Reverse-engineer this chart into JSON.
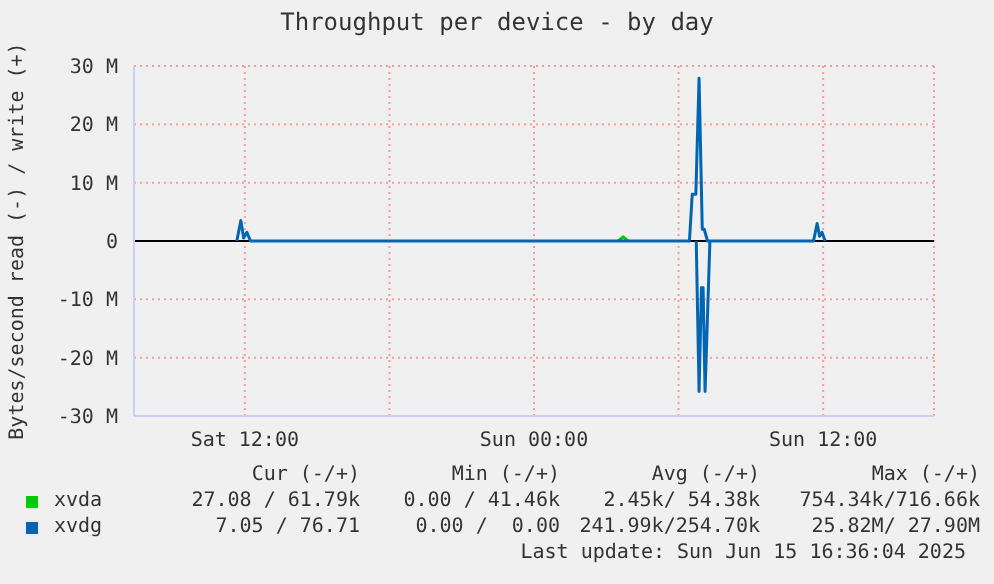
{
  "chart_data": {
    "type": "line",
    "title": "Throughput per device - by day",
    "ylabel": "Bytes/second read (-) / write (+)",
    "xlim": [
      "2025-06-14T07:24",
      "2025-06-15T16:36"
    ],
    "xticks": [
      {
        "value": "2025-06-14T12:00",
        "label": "Sat 12:00"
      },
      {
        "value": "2025-06-14T18:00",
        "label": null
      },
      {
        "value": "2025-06-15T00:00",
        "label": "Sun 00:00"
      },
      {
        "value": "2025-06-15T06:00",
        "label": null
      },
      {
        "value": "2025-06-15T12:00",
        "label": "Sun 12:00"
      }
    ],
    "ylim": [
      -30000000,
      30000000
    ],
    "yticks": [
      {
        "value": -30000000,
        "label": "-30 M"
      },
      {
        "value": -20000000,
        "label": "-20 M"
      },
      {
        "value": -10000000,
        "label": "-10 M"
      },
      0,
      {
        "value": 10000000,
        "label": "10 M"
      },
      {
        "value": 20000000,
        "label": "20 M"
      },
      {
        "value": 30000000,
        "label": "30 M"
      }
    ],
    "grid": true,
    "legend": "bottom",
    "marker": "none",
    "line_style": "solid",
    "ref_lines": [
      {
        "axis": "y",
        "value": 0,
        "color": "#000000"
      }
    ],
    "series": [
      {
        "name": "xvda",
        "color": "#00cc00",
        "x": [
          "2025-06-15T03:30",
          "2025-06-15T03:42",
          "2025-06-15T03:54"
        ],
        "values": [
          0,
          700000,
          0
        ]
      },
      {
        "name": "xvdg",
        "color": "#0066b3",
        "x": [
          "2025-06-14T11:40",
          "2025-06-14T11:50",
          "2025-06-14T11:57",
          "2025-06-14T12:05",
          "2025-06-14T12:14",
          "2025-06-15T06:27",
          "2025-06-15T06:34",
          "2025-06-15T06:43",
          "2025-06-15T06:51",
          "2025-06-15T06:59",
          "2025-06-15T07:04",
          "2025-06-15T07:12",
          "2025-06-15T11:36",
          "2025-06-15T11:45",
          "2025-06-15T11:51",
          "2025-06-15T11:57",
          "2025-06-15T12:05"
        ],
        "values": [
          0,
          3500000,
          500000,
          1500000,
          0,
          0,
          8000000,
          8000000,
          27900000,
          2000000,
          2000000,
          0,
          0,
          3000000,
          800000,
          1500000,
          0
        ]
      },
      {
        "color": "#0066b3",
        "x": [
          "2025-06-15T06:44",
          "2025-06-15T06:51",
          "2025-06-15T06:57",
          "2025-06-15T07:01",
          "2025-06-15T07:06",
          "2025-06-15T07:18"
        ],
        "values": [
          0,
          -25800000,
          -8000000,
          -8000000,
          -25800000,
          0
        ]
      }
    ],
    "annotations": [
      "Cur (-/+)",
      "Min (-/+)",
      "Avg (-/+)",
      "Max (-/+)",
      "27.08 / 61.79k",
      "0.00 / 41.46k",
      "2.45k/ 54.38k",
      "754.34k/716.66k",
      "7.05 / 76.71",
      "0.00 /  0.00",
      "241.99k/254.70k",
      "25.82M/ 27.90M",
      "Last update: Sun Jun 15 16:36:04 2025"
    ]
  }
}
